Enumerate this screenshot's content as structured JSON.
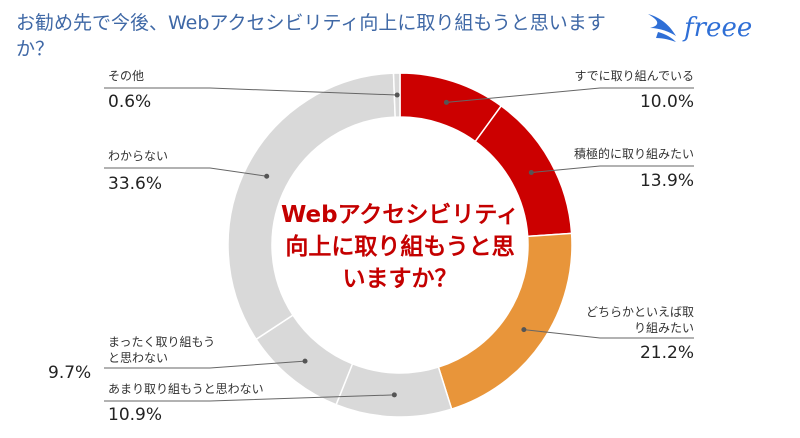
{
  "title": "お勧め先で今後、Webアクセシビリティ向上に取り組もうと思いますか？",
  "logo": {
    "text": "freee"
  },
  "chart_data": {
    "type": "pie",
    "title": "Webアクセシビリティ向上に取り組もうと思いますか？",
    "center_lines": [
      "Webアクセシビリティ",
      "向上に取り組もうと思",
      "いますか？"
    ],
    "slices": [
      {
        "label": "すでに取り組んでいる",
        "value": 10.0,
        "display": "10.0%",
        "color": "#cc0000"
      },
      {
        "label": "積極的に取り組みたい",
        "value": 13.9,
        "display": "13.9%",
        "color": "#cc0000"
      },
      {
        "label": "どちらかといえば取り組みたい",
        "value": 21.2,
        "display": "21.2%",
        "color": "#e8953a"
      },
      {
        "label": "あまり取り組もうと思わない",
        "value": 10.9,
        "display": "10.9%",
        "color": "#d9d9d9"
      },
      {
        "label": "まったく取り組もうと思わない",
        "value": 9.7,
        "display": "9.7%",
        "color": "#d9d9d9"
      },
      {
        "label": "わからない",
        "value": 33.6,
        "display": "33.6%",
        "color": "#d9d9d9"
      },
      {
        "label": "その他",
        "value": 0.6,
        "display": "0.6%",
        "color": "#d9d9d9"
      }
    ]
  }
}
